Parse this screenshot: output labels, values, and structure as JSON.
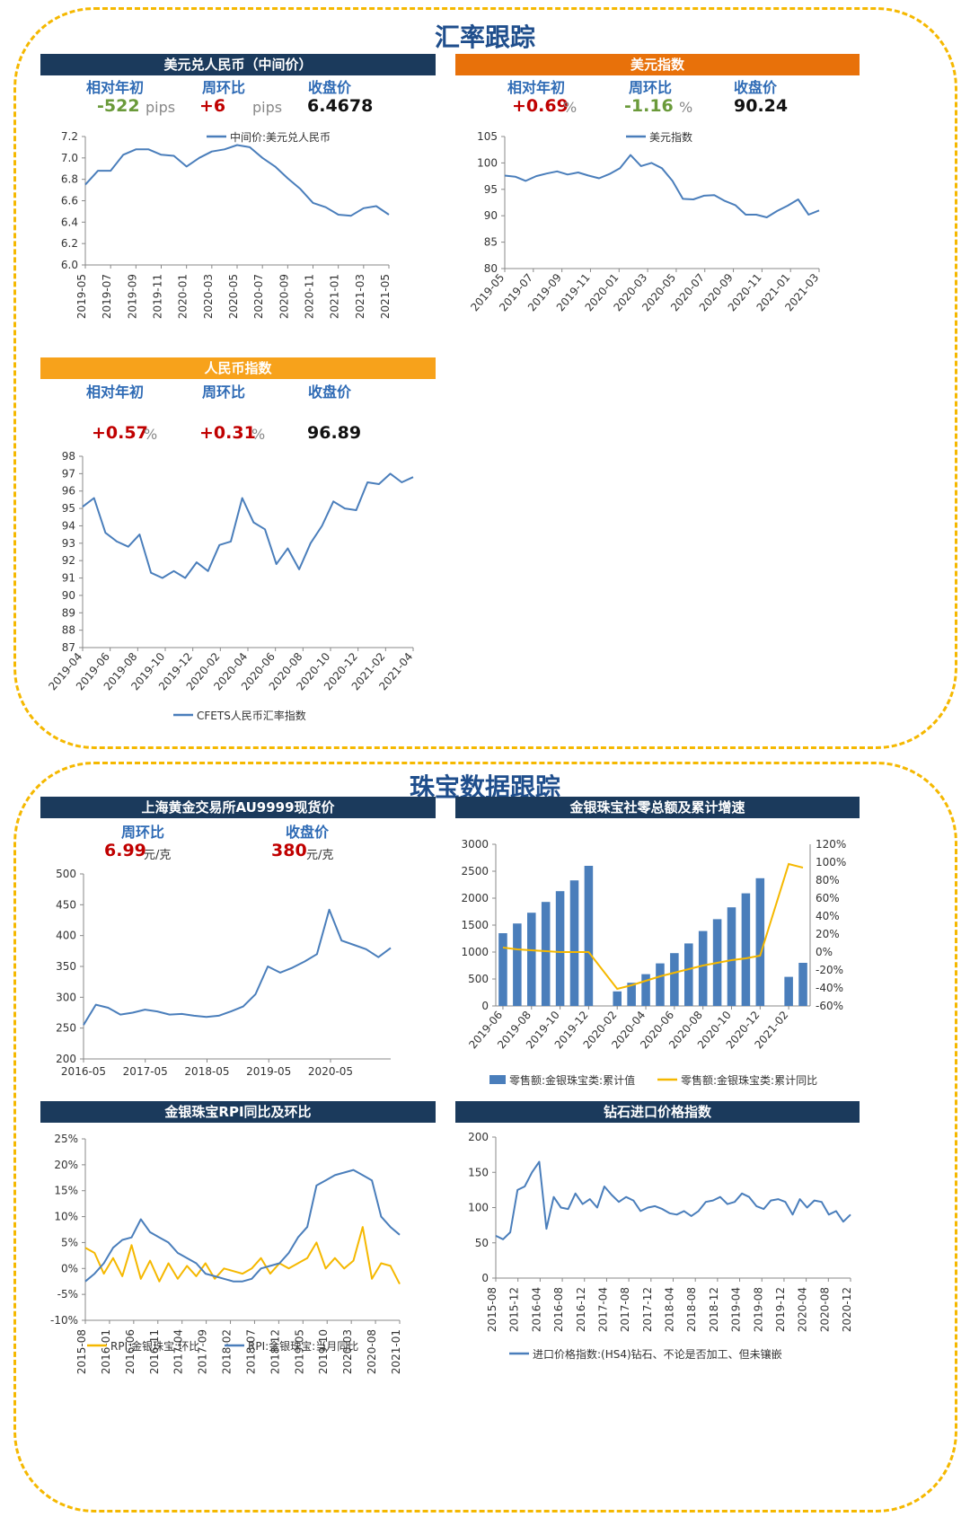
{
  "sections": {
    "fx_title": "汇率跟踪",
    "jewelry_title": "珠宝数据跟踪"
  },
  "colors": {
    "navy": "#1b3a5c",
    "orange": "#e8710a",
    "amber": "#f7a21b",
    "line": "#4a7ebb",
    "bar": "#4a7ebb",
    "yellow": "#f5b800",
    "red": "#c00000",
    "green": "#6a9a3a",
    "label_blue": "#2f6bb5",
    "frame": "#f5b800"
  },
  "usdcny": {
    "title": "美元兑人民币（中间价）",
    "labels": {
      "ytd": "相对年初",
      "wow": "周环比",
      "close": "收盘价"
    },
    "values": {
      "ytd": "-522",
      "ytd_unit": "pips",
      "wow": "+6",
      "wow_unit": "pips",
      "close": "6.4678"
    }
  },
  "dxy": {
    "title": "美元指数",
    "labels": {
      "ytd": "相对年初",
      "wow": "周环比",
      "close": "收盘价"
    },
    "values": {
      "ytd": "+0.69",
      "ytd_unit": "%",
      "wow": "-1.16",
      "wow_unit": "%",
      "close": "90.24"
    }
  },
  "cny_index": {
    "title": "人民币指数",
    "labels": {
      "ytd": "相对年初",
      "wow": "周环比",
      "close": "收盘价"
    },
    "values": {
      "ytd": "+0.57",
      "ytd_unit": "%",
      "wow": "+0.31",
      "wow_unit": "%",
      "close": "96.89"
    }
  },
  "gold": {
    "title": "上海黄金交易所AU9999现货价",
    "labels": {
      "wow": "周环比",
      "close": "收盘价"
    },
    "values": {
      "wow": "6.99",
      "wow_unit": "元/克",
      "close": "380",
      "close_unit": "元/克"
    }
  },
  "retail": {
    "title": "金银珠宝社零总额及累计增速"
  },
  "rpi": {
    "title": "金银珠宝RPI同比及环比"
  },
  "diamond": {
    "title": "钻石进口价格指数"
  },
  "chart_data": [
    {
      "id": "usdcny",
      "type": "line",
      "series": [
        {
          "name": "中间价:美元兑人民币",
          "x": [
            "2019-05",
            "2019-06",
            "2019-07",
            "2019-08",
            "2019-09",
            "2019-10",
            "2019-11",
            "2019-12",
            "2020-01",
            "2020-02",
            "2020-03",
            "2020-04",
            "2020-05",
            "2020-06",
            "2020-07",
            "2020-08",
            "2020-09",
            "2020-10",
            "2020-11",
            "2020-12",
            "2021-01",
            "2021-02",
            "2021-03",
            "2021-04",
            "2021-05"
          ],
          "values": [
            6.75,
            6.88,
            6.88,
            7.03,
            7.08,
            7.08,
            7.03,
            7.02,
            6.92,
            7.0,
            7.06,
            7.08,
            7.12,
            7.1,
            7.0,
            6.92,
            6.81,
            6.71,
            6.58,
            6.54,
            6.47,
            6.46,
            6.53,
            6.55,
            6.47
          ]
        }
      ],
      "xticks": [
        "2019-05",
        "2019-07",
        "2019-09",
        "2019-11",
        "2020-01",
        "2020-03",
        "2020-05",
        "2020-07",
        "2020-09",
        "2020-11",
        "2021-01",
        "2021-03",
        "2021-05"
      ],
      "ylim": [
        6.0,
        7.2
      ],
      "yticks": [
        "6.0",
        "6.2",
        "6.4",
        "6.6",
        "6.8",
        "7.0",
        "7.2"
      ]
    },
    {
      "id": "dxy",
      "type": "line",
      "series": [
        {
          "name": "美元指数",
          "values": [
            97.6,
            97.4,
            96.6,
            97.5,
            98.0,
            98.4,
            97.8,
            98.2,
            97.6,
            97.1,
            97.9,
            99.0,
            101.5,
            99.4,
            100.0,
            99.0,
            96.6,
            93.2,
            93.1,
            93.8,
            93.9,
            92.8,
            92.0,
            90.2,
            90.2,
            89.7,
            90.9,
            91.9,
            93.1,
            90.2,
            91.0
          ]
        }
      ],
      "xticks": [
        "2019-05",
        "2019-07",
        "2019-09",
        "2019-11",
        "2020-01",
        "2020-03",
        "2020-05",
        "2020-07",
        "2020-09",
        "2020-11",
        "2021-01",
        "2021-03"
      ],
      "ylim": [
        80,
        105
      ],
      "yticks": [
        "80",
        "85",
        "90",
        "95",
        "100",
        "105"
      ]
    },
    {
      "id": "cny_index",
      "type": "line",
      "series": [
        {
          "name": "CFETS人民币汇率指数",
          "values": [
            95.1,
            95.6,
            93.6,
            93.1,
            92.8,
            93.5,
            91.3,
            91.0,
            91.4,
            91.0,
            91.9,
            91.4,
            92.9,
            93.1,
            95.6,
            94.2,
            93.8,
            91.8,
            92.7,
            91.5,
            93.0,
            94.0,
            95.4,
            95.0,
            94.9,
            96.5,
            96.4,
            97.0,
            96.5,
            96.8
          ]
        }
      ],
      "xticks": [
        "2019-04",
        "2019-06",
        "2019-08",
        "2019-10",
        "2019-12",
        "2020-02",
        "2020-04",
        "2020-06",
        "2020-08",
        "2020-10",
        "2020-12",
        "2021-02",
        "2021-04"
      ],
      "ylim": [
        87,
        98
      ],
      "yticks": [
        "87",
        "88",
        "89",
        "90",
        "91",
        "92",
        "93",
        "94",
        "95",
        "96",
        "97",
        "98"
      ]
    },
    {
      "id": "gold",
      "type": "line",
      "series": [
        {
          "name": "AU9999",
          "values": [
            255,
            288,
            283,
            272,
            275,
            280,
            277,
            272,
            273,
            270,
            268,
            270,
            277,
            285,
            305,
            350,
            340,
            348,
            358,
            370,
            442,
            392,
            385,
            378,
            365,
            380
          ]
        }
      ],
      "xticks": [
        "2016-05",
        "2017-05",
        "2018-05",
        "2019-05",
        "2020-05"
      ],
      "ylim": [
        200,
        500
      ],
      "yticks": [
        "200",
        "250",
        "300",
        "350",
        "400",
        "450",
        "500"
      ]
    },
    {
      "id": "retail",
      "type": "bar",
      "categories": [
        "2019-06",
        "2019-07",
        "2019-08",
        "2019-09",
        "2019-10",
        "2019-11",
        "2019-12",
        "2020-01",
        "2020-02",
        "2020-03",
        "2020-04",
        "2020-05",
        "2020-06",
        "2020-07",
        "2020-08",
        "2020-09",
        "2020-10",
        "2020-11",
        "2020-12",
        "2021-01",
        "2021-02",
        "2021-03"
      ],
      "xticks": [
        "2019-06",
        "2019-08",
        "2019-10",
        "2019-12",
        "2020-02",
        "2020-04",
        "2020-06",
        "2020-08",
        "2020-10",
        "2020-12",
        "2021-02"
      ],
      "series": [
        {
          "name": "零售额:金银珠宝类:累计值",
          "type": "bar",
          "values": [
            1350,
            1530,
            1730,
            1930,
            2130,
            2330,
            2600,
            null,
            270,
            430,
            590,
            790,
            980,
            1160,
            1390,
            1610,
            1830,
            2090,
            2370,
            null,
            540,
            800
          ]
        },
        {
          "name": "零售额:金银珠宝类:累计同比",
          "type": "line",
          "values": [
            5,
            3,
            2,
            1,
            0,
            0,
            0,
            null,
            -41,
            -37,
            -32,
            -27,
            -23,
            -19,
            -15,
            -12,
            -9,
            -7,
            -4,
            null,
            98,
            94
          ]
        }
      ],
      "ylim": [
        0,
        3000
      ],
      "yticks": [
        "0",
        "500",
        "1000",
        "1500",
        "2000",
        "2500",
        "3000"
      ],
      "y2lim": [
        -60,
        120
      ],
      "y2ticks": [
        "-60%",
        "-40%",
        "-20%",
        "0%",
        "20%",
        "40%",
        "60%",
        "80%",
        "100%",
        "120%"
      ]
    },
    {
      "id": "rpi",
      "type": "line",
      "series": [
        {
          "name": "RPI:金银珠宝:环比",
          "values": [
            4.0,
            3.0,
            -1.0,
            2.0,
            -1.5,
            4.5,
            -2.0,
            1.5,
            -2.5,
            1.0,
            -2.0,
            0.5,
            -1.5,
            1.0,
            -2.0,
            0.0,
            -0.5,
            -1.0,
            0.0,
            2.0,
            -1.0,
            1.0,
            0.0,
            1.0,
            2.0,
            5.0,
            0.0,
            2.0,
            0.0,
            1.5,
            8.0,
            -2.0,
            1.0,
            0.5,
            -3.0
          ]
        },
        {
          "name": "RPI:金银珠宝:当月同比",
          "values": [
            -2.5,
            -1.0,
            1.0,
            4.0,
            5.5,
            6.0,
            9.5,
            7.0,
            6.0,
            5.0,
            3.0,
            2.0,
            1.0,
            -1.0,
            -1.5,
            -2.0,
            -2.5,
            -2.5,
            -2.0,
            0.0,
            0.5,
            1.0,
            3.0,
            6.0,
            8.0,
            16.0,
            17.0,
            18.0,
            18.5,
            19.0,
            18.0,
            17.0,
            10.0,
            8.0,
            6.5
          ]
        }
      ],
      "xticks": [
        "2015-08",
        "2016-01",
        "2016-06",
        "2016-11",
        "2017-04",
        "2017-09",
        "2018-02",
        "2018-07",
        "2018-12",
        "2019-05",
        "2019-10",
        "2020-03",
        "2020-08",
        "2021-01"
      ],
      "ylim": [
        -10,
        25
      ],
      "yticks": [
        "-10%",
        "-5%",
        "0%",
        "5%",
        "10%",
        "15%",
        "20%",
        "25%"
      ]
    },
    {
      "id": "diamond",
      "type": "line",
      "series": [
        {
          "name": "进口价格指数:(HS4)钻石、不论是否加工、但未镶嵌",
          "values": [
            60,
            55,
            65,
            125,
            130,
            150,
            165,
            70,
            115,
            100,
            98,
            120,
            105,
            112,
            100,
            130,
            118,
            108,
            115,
            110,
            95,
            100,
            102,
            98,
            92,
            90,
            95,
            88,
            95,
            108,
            110,
            115,
            105,
            108,
            120,
            115,
            102,
            98,
            110,
            112,
            108,
            90,
            112,
            100,
            110,
            108,
            90,
            95,
            80,
            90
          ]
        }
      ],
      "xticks": [
        "2015-08",
        "2015-12",
        "2016-04",
        "2016-08",
        "2016-12",
        "2017-04",
        "2017-08",
        "2017-12",
        "2018-04",
        "2018-08",
        "2018-12",
        "2019-04",
        "2019-08",
        "2019-12",
        "2020-04",
        "2020-08",
        "2020-12"
      ],
      "ylim": [
        0,
        200
      ],
      "yticks": [
        "0",
        "50",
        "100",
        "150",
        "200"
      ]
    }
  ]
}
